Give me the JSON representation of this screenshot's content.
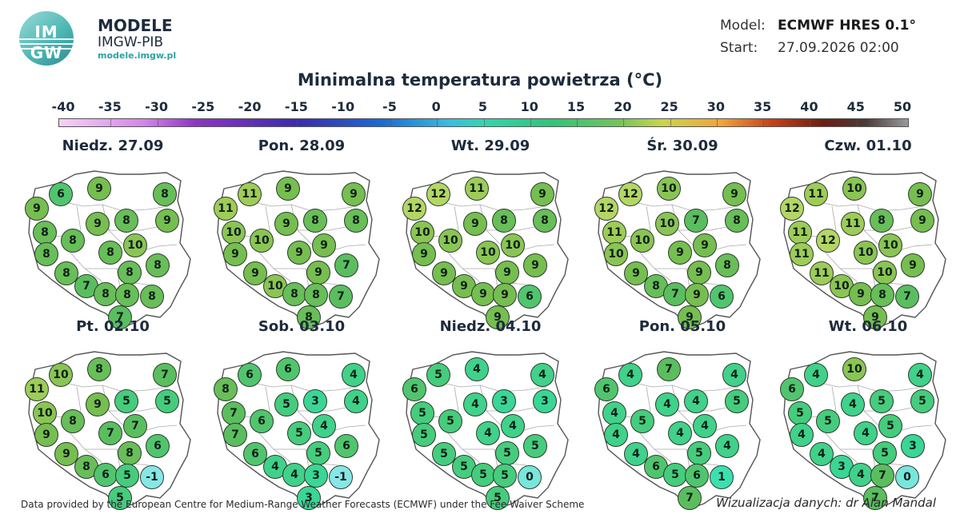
{
  "brand": {
    "name": "MODELE",
    "org": "IMGW-PIB",
    "url": "modele.imgw.pl",
    "logo_top": "IM",
    "logo_bottom": "GW"
  },
  "meta": {
    "model_label": "Model:",
    "model_value": "ECMWF HRES 0.1°",
    "start_label": "Start:",
    "start_value": "27.09.2026 02:00"
  },
  "title": "Minimalna temperatura powietrza (°C)",
  "colorbar": {
    "ticks": [
      "-40",
      "-35",
      "-30",
      "-25",
      "-20",
      "-15",
      "-10",
      "-5",
      "0",
      "5",
      "10",
      "15",
      "20",
      "25",
      "30",
      "35",
      "40",
      "45",
      "50"
    ],
    "min": -40,
    "max": 50
  },
  "colors": {
    "outline": "#555555",
    "bubble_border": "#2c3a2c"
  },
  "days": [
    {
      "label": "Niedz. 27.09",
      "values": [
        9,
        6,
        9,
        8,
        9,
        8,
        8,
        9,
        8,
        8,
        8,
        10,
        8,
        8,
        8,
        7,
        8,
        8,
        8,
        7
      ]
    },
    {
      "label": "Pon. 28.09",
      "values": [
        11,
        11,
        9,
        9,
        8,
        10,
        10,
        9,
        8,
        9,
        9,
        9,
        9,
        7,
        9,
        10,
        8,
        8,
        7,
        8
      ]
    },
    {
      "label": "Wt. 29.09",
      "values": [
        12,
        12,
        11,
        9,
        8,
        10,
        10,
        9,
        8,
        9,
        10,
        10,
        9,
        9,
        9,
        9,
        9,
        9,
        6,
        9
      ]
    },
    {
      "label": "Śr. 30.09",
      "values": [
        12,
        12,
        10,
        9,
        8,
        11,
        10,
        10,
        7,
        10,
        9,
        9,
        9,
        8,
        9,
        8,
        7,
        9,
        6,
        9
      ]
    },
    {
      "label": "Czw. 01.10",
      "values": [
        12,
        11,
        10,
        9,
        9,
        11,
        12,
        11,
        8,
        11,
        10,
        10,
        11,
        9,
        10,
        10,
        9,
        8,
        7,
        9
      ]
    },
    {
      "label": "Pt. 02.10",
      "values": [
        11,
        10,
        8,
        7,
        5,
        10,
        8,
        9,
        5,
        9,
        7,
        7,
        9,
        6,
        8,
        8,
        6,
        5,
        -1,
        5
      ]
    },
    {
      "label": "Sob. 03.10",
      "values": [
        8,
        6,
        6,
        4,
        4,
        7,
        6,
        5,
        3,
        7,
        5,
        4,
        6,
        6,
        5,
        4,
        4,
        3,
        -1,
        3
      ]
    },
    {
      "label": "Niedz. 04.10",
      "values": [
        6,
        5,
        4,
        4,
        3,
        5,
        5,
        4,
        3,
        5,
        4,
        4,
        5,
        5,
        5,
        5,
        5,
        5,
        0,
        5
      ]
    },
    {
      "label": "Pon. 05.10",
      "values": [
        6,
        4,
        7,
        4,
        5,
        4,
        5,
        4,
        4,
        4,
        4,
        4,
        4,
        4,
        5,
        6,
        5,
        6,
        1,
        7
      ]
    },
    {
      "label": "Wt. 06.10",
      "values": [
        6,
        4,
        10,
        4,
        5,
        5,
        5,
        4,
        5,
        4,
        4,
        5,
        4,
        3,
        5,
        3,
        4,
        7,
        0,
        7
      ]
    }
  ],
  "footer": {
    "left": "Data provided by the European Centre for Medium-Range Weather Forecasts (ECMWF) under the Fee Waiver Scheme",
    "right": "Wizualizacja danych: dr Alan Mandal"
  }
}
